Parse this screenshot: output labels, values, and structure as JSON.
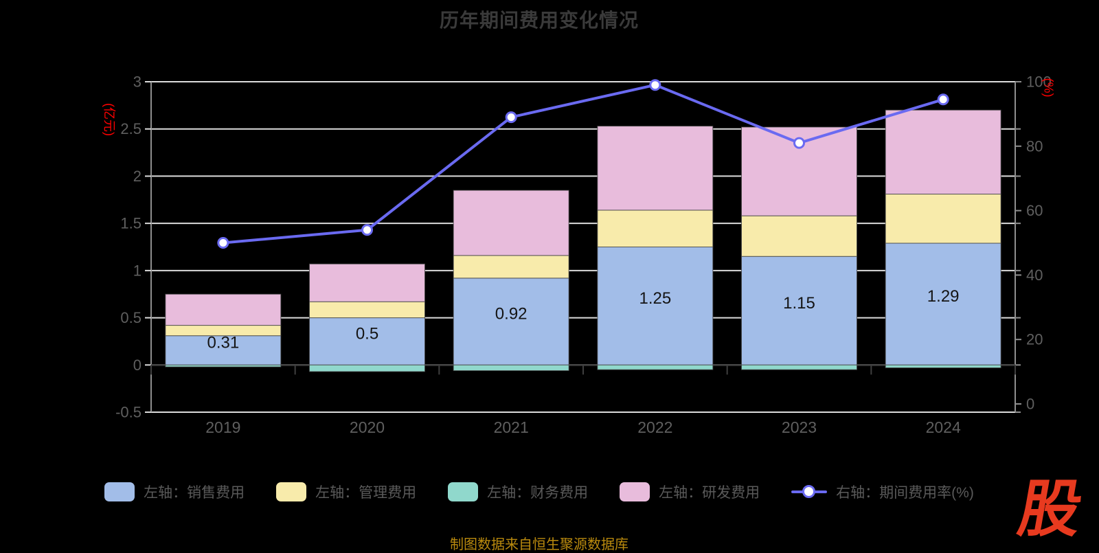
{
  "title": "历年期间费用变化情况",
  "source_note": "制图数据来自恒生聚源数据库",
  "logo_text": "股",
  "colors": {
    "background": "#000000",
    "title": "#3a3a3a",
    "axis_label": "#5f5f5f",
    "grid_line": "#dcdcdc",
    "axis_line": "#8f8f8f",
    "zero_axis": "#3f3f3f",
    "bar_border": "rgba(70,70,70,0.85)",
    "value_label": "#141414",
    "line": "#6a6af1",
    "marker_fill": "#ffffff",
    "legend_text": "#5a5a5a",
    "source_note": "#ba8a0e",
    "logo": "#e83a1f",
    "axis_name": "#ff0000"
  },
  "chart_data": {
    "type": "bar",
    "subtype": "stacked-bars-with-line",
    "title": "历年期间费用变化情况",
    "categories": [
      "2019",
      "2020",
      "2021",
      "2022",
      "2023",
      "2024"
    ],
    "series": [
      {
        "name": "左轴：销售费用",
        "type": "bar",
        "stack": true,
        "axis": "left",
        "color": "#a2bde8",
        "values": [
          0.31,
          0.5,
          0.92,
          1.25,
          1.15,
          1.29
        ],
        "value_labels": [
          "0.31",
          "0.5",
          "0.92",
          "1.25",
          "1.15",
          "1.29"
        ]
      },
      {
        "name": "左轴：管理费用",
        "type": "bar",
        "stack": true,
        "axis": "left",
        "color": "#f8ebab",
        "values": [
          0.11,
          0.17,
          0.24,
          0.39,
          0.43,
          0.52
        ]
      },
      {
        "name": "左轴：财务费用",
        "type": "bar",
        "stack": true,
        "axis": "left",
        "color": "#90d8cc",
        "values": [
          -0.02,
          -0.07,
          -0.06,
          -0.05,
          -0.05,
          -0.03
        ]
      },
      {
        "name": "左轴：研发费用",
        "type": "bar",
        "stack": true,
        "axis": "left",
        "color": "#e8bcdc",
        "values": [
          0.33,
          0.4,
          0.69,
          0.89,
          0.94,
          0.89
        ]
      },
      {
        "name": "右轴：期间费用率(%)",
        "type": "line",
        "axis": "right",
        "color": "#6a6af1",
        "values": [
          50,
          54,
          89,
          99,
          81,
          94.5
        ]
      }
    ],
    "left_axis": {
      "name": "(亿元)",
      "min": -0.5,
      "max": 3,
      "interval": 0.5,
      "tick_labels": [
        "3",
        "2.5",
        "2",
        "1.5",
        "1",
        "0.5",
        "0",
        "-0.5"
      ]
    },
    "right_axis": {
      "name": "(%)",
      "min": 0,
      "max": 100,
      "interval": 20,
      "tick_labels": [
        "100",
        "80",
        "60",
        "40",
        "20",
        "0"
      ]
    },
    "grid": true,
    "legend_position": "bottom"
  }
}
